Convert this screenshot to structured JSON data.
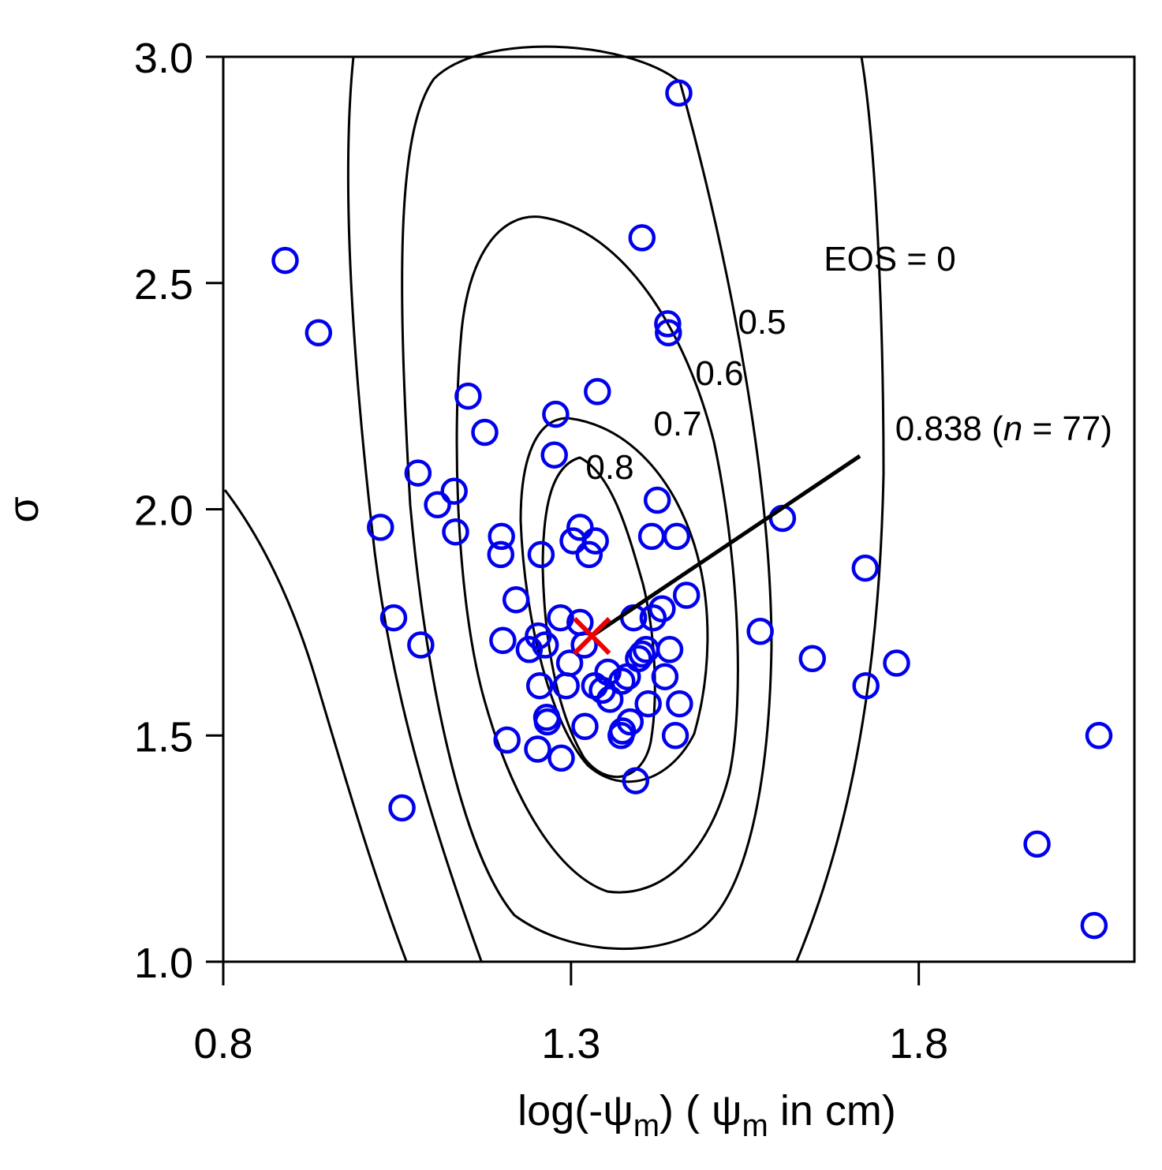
{
  "chart_data": {
    "type": "scatter",
    "title": "",
    "xlabel": {
      "prefix": "log(-ψ",
      "sub1": "m",
      "mid": ") ( ψ",
      "sub2": "m",
      "suffix": " in cm)"
    },
    "ylabel": "σ",
    "xlim": [
      0.8,
      2.11
    ],
    "ylim": [
      1.0,
      3.0
    ],
    "xticks": [
      {
        "value": 0.8,
        "label": "0.8"
      },
      {
        "value": 1.3,
        "label": "1.3"
      },
      {
        "value": 1.8,
        "label": "1.8"
      }
    ],
    "yticks": [
      {
        "value": 1.0,
        "label": "1.0"
      },
      {
        "value": 1.5,
        "label": "1.5"
      },
      {
        "value": 2.0,
        "label": "2.0"
      },
      {
        "value": 2.5,
        "label": "2.5"
      },
      {
        "value": 3.0,
        "label": "3.0"
      }
    ],
    "grid": false,
    "marker_color": "#0000ee",
    "optimum_color": "#ee0000",
    "points": [
      [
        1.455,
        2.92
      ],
      [
        1.402,
        2.6
      ],
      [
        0.889,
        2.55
      ],
      [
        1.439,
        2.41
      ],
      [
        1.44,
        2.39
      ],
      [
        0.937,
        2.39
      ],
      [
        1.338,
        2.26
      ],
      [
        1.152,
        2.25
      ],
      [
        1.278,
        2.21
      ],
      [
        1.176,
        2.17
      ],
      [
        1.276,
        2.12
      ],
      [
        1.08,
        2.08
      ],
      [
        1.132,
        2.04
      ],
      [
        1.108,
        2.01
      ],
      [
        1.424,
        2.02
      ],
      [
        1.604,
        1.98
      ],
      [
        1.026,
        1.96
      ],
      [
        1.313,
        1.96
      ],
      [
        1.134,
        1.95
      ],
      [
        1.303,
        1.93
      ],
      [
        1.2,
        1.94
      ],
      [
        1.416,
        1.94
      ],
      [
        1.452,
        1.94
      ],
      [
        1.335,
        1.93
      ],
      [
        1.199,
        1.9
      ],
      [
        1.257,
        1.9
      ],
      [
        1.326,
        1.9
      ],
      [
        1.723,
        1.87
      ],
      [
        1.466,
        1.81
      ],
      [
        1.221,
        1.8
      ],
      [
        1.431,
        1.78
      ],
      [
        1.045,
        1.76
      ],
      [
        1.285,
        1.76
      ],
      [
        1.39,
        1.76
      ],
      [
        1.418,
        1.76
      ],
      [
        1.313,
        1.75
      ],
      [
        1.572,
        1.73
      ],
      [
        1.253,
        1.72
      ],
      [
        1.202,
        1.71
      ],
      [
        1.084,
        1.7
      ],
      [
        1.319,
        1.7
      ],
      [
        1.24,
        1.69
      ],
      [
        1.263,
        1.7
      ],
      [
        1.408,
        1.69
      ],
      [
        1.442,
        1.69
      ],
      [
        1.647,
        1.67
      ],
      [
        1.768,
        1.66
      ],
      [
        1.298,
        1.66
      ],
      [
        1.402,
        1.68
      ],
      [
        1.353,
        1.64
      ],
      [
        1.397,
        1.67
      ],
      [
        1.381,
        1.63
      ],
      [
        1.435,
        1.63
      ],
      [
        1.255,
        1.61
      ],
      [
        1.293,
        1.61
      ],
      [
        1.334,
        1.61
      ],
      [
        1.345,
        1.6
      ],
      [
        1.724,
        1.61
      ],
      [
        1.373,
        1.62
      ],
      [
        1.356,
        1.58
      ],
      [
        1.411,
        1.57
      ],
      [
        1.456,
        1.57
      ],
      [
        1.265,
        1.54
      ],
      [
        1.266,
        1.53
      ],
      [
        1.32,
        1.52
      ],
      [
        1.385,
        1.53
      ],
      [
        1.374,
        1.51
      ],
      [
        1.45,
        1.5
      ],
      [
        1.372,
        1.5
      ],
      [
        1.208,
        1.49
      ],
      [
        1.252,
        1.47
      ],
      [
        1.286,
        1.45
      ],
      [
        2.059,
        1.5
      ],
      [
        1.393,
        1.4
      ],
      [
        1.057,
        1.34
      ],
      [
        1.97,
        1.26
      ],
      [
        2.052,
        1.08
      ]
    ],
    "optimum": {
      "x": 1.33,
      "y": 1.72,
      "label": "0.838 (",
      "n_label": "n",
      "suffix": " = 77)"
    },
    "contours": [
      {
        "level": "EOS = 0"
      },
      {
        "level": "0.5"
      },
      {
        "level": "0.6"
      },
      {
        "level": "0.7"
      },
      {
        "level": "0.8"
      }
    ]
  }
}
